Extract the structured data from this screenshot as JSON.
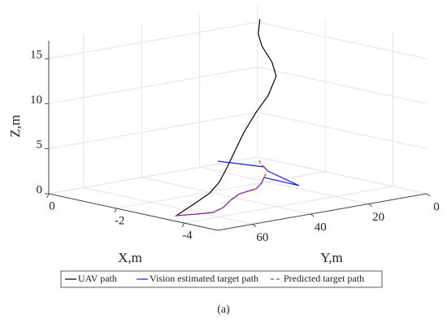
{
  "chart_data": {
    "type": "line3d",
    "x_label": "X,m",
    "y_label": "Y,m",
    "z_label": "Z,m",
    "xlim": [
      -5,
      0
    ],
    "ylim": [
      0,
      72
    ],
    "zlim": [
      0,
      17
    ],
    "xticks": [
      0,
      -2,
      -4
    ],
    "yticks": [
      0,
      20,
      40,
      60
    ],
    "zticks": [
      0,
      5,
      10,
      15
    ],
    "grid": true,
    "series": [
      {
        "name": "UAV path",
        "color": "#000000",
        "dash": "none",
        "x": [
          -3.37,
          -3.47,
          -3.52,
          -3.43,
          -3.29,
          -3.15,
          -3.01,
          -2.99,
          -2.97,
          -2.83,
          -2.33,
          -1.64,
          -1.16,
          -0.83
        ],
        "y": [
          67.6,
          62,
          57.6,
          53.2,
          48.7,
          44.3,
          39.9,
          35.4,
          31,
          26.6,
          22.2,
          17.7,
          13.3,
          8.9
        ],
        "z": [
          0,
          1.2,
          2.1,
          3,
          4.4,
          5.9,
          7.4,
          9.4,
          11,
          12.8,
          13.7,
          14.7,
          15.4,
          16.5
        ]
      },
      {
        "name": "Vision estimated target path",
        "color": "#1a1aff",
        "dash": "none",
        "x": [
          -3.34,
          -3.48,
          -3.59,
          -3.36,
          -2.85,
          -2.53,
          -2.45,
          -2.38,
          -2.02,
          -1.62,
          -2.7,
          -1.18,
          -0.82,
          0.22
        ],
        "y": [
          67.2,
          62.2,
          57.3,
          51.1,
          42.2,
          35.7,
          31.9,
          28.3,
          22.2,
          16.7,
          17.2,
          10.3,
          7.4,
          11.2
        ],
        "z": [
          0,
          0,
          0,
          0,
          0,
          0,
          0,
          0,
          0,
          0,
          0,
          0,
          0,
          0
        ]
      },
      {
        "name": "Predicted target path",
        "color": "#e03030",
        "dash": "4 3",
        "x": [
          -3.34,
          -3.48,
          -3.59,
          -3.36,
          -2.85,
          -2.53,
          -2.45,
          -2.38,
          -2.02,
          -1.62,
          -1.18,
          -0.82,
          -0.46,
          -0.13
        ],
        "y": [
          67.2,
          62.2,
          57.3,
          51.1,
          42.2,
          35.7,
          31.9,
          28.3,
          22.2,
          16.7,
          10.3,
          7.4,
          4.5,
          1.3
        ],
        "z": [
          0,
          0,
          0,
          0,
          0,
          0,
          0,
          0,
          0,
          0,
          0,
          0,
          0,
          0
        ]
      }
    ],
    "caption": "(a)"
  }
}
